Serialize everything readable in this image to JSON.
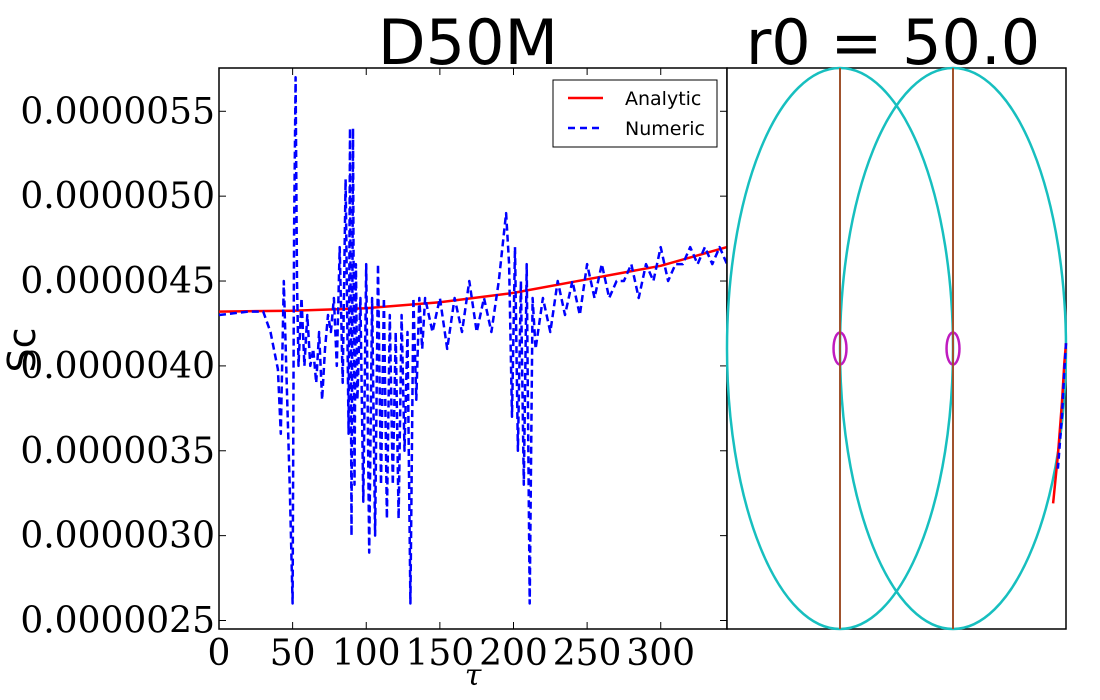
{
  "chart_data": [
    {
      "type": "line",
      "title": "D50M",
      "xlabel": "τ",
      "ylabel": "Sc",
      "xlim": [
        0,
        345
      ],
      "ylim": [
        2.45e-06,
        5.755e-06
      ],
      "xticks": [
        0,
        50,
        100,
        150,
        200,
        250,
        300
      ],
      "yticks": [
        2.5e-06,
        3e-06,
        3.5e-06,
        4e-06,
        4.5e-06,
        5e-06,
        5.5e-06
      ],
      "ytick_labels": [
        "0.0000025",
        "0.0000030",
        "0.0000035",
        "0.0000040",
        "0.0000045",
        "0.0000050",
        "0.0000055"
      ],
      "legend_position": "top-right",
      "series": [
        {
          "name": "Analytic",
          "color": "#ff0000",
          "style": "solid",
          "x": [
            0,
            50,
            100,
            150,
            200,
            250,
            300,
            345
          ],
          "y": [
            4.32e-06,
            4.325e-06,
            4.34e-06,
            4.375e-06,
            4.43e-06,
            4.51e-06,
            4.59e-06,
            4.7e-06
          ]
        },
        {
          "name": "Numeric",
          "color": "#0000ff",
          "style": "dashed",
          "x": [
            0,
            10,
            20,
            30,
            35,
            40,
            42,
            44,
            46,
            48,
            50,
            51,
            52,
            53,
            54,
            56,
            58,
            60,
            62,
            64,
            66,
            68,
            70,
            72,
            74,
            76,
            78,
            80,
            82,
            84,
            86,
            88,
            89,
            90,
            91,
            92,
            93,
            94,
            96,
            98,
            100,
            102,
            104,
            106,
            108,
            110,
            112,
            114,
            116,
            118,
            120,
            122,
            124,
            126,
            128,
            130,
            132,
            134,
            136,
            138,
            140,
            145,
            150,
            155,
            160,
            165,
            170,
            175,
            180,
            185,
            190,
            195,
            197,
            199,
            201,
            203,
            205,
            207,
            209,
            211,
            213,
            215,
            220,
            225,
            230,
            235,
            240,
            245,
            250,
            255,
            260,
            265,
            270,
            275,
            280,
            285,
            290,
            295,
            300,
            305,
            310,
            315,
            320,
            325,
            330,
            335,
            340,
            345
          ],
          "y": [
            4.3e-06,
            4.31e-06,
            4.32e-06,
            4.32e-06,
            4.2e-06,
            3.98e-06,
            3.6e-06,
            4.5e-06,
            3.9e-06,
            3.3e-06,
            2.6e-06,
            4.8e-06,
            5.7e-06,
            4.5e-06,
            4e-06,
            4.4e-06,
            4e-06,
            4.3e-06,
            4e-06,
            4.1e-06,
            3.9e-06,
            4.2e-06,
            3.8e-06,
            4.1e-06,
            4.3e-06,
            4.2e-06,
            4.4e-06,
            4e-06,
            4.7e-06,
            3.9e-06,
            5.1e-06,
            3.6e-06,
            5.4e-06,
            3e-06,
            5.4e-06,
            3.3e-06,
            4.6e-06,
            3.8e-06,
            4.4e-06,
            3.2e-06,
            4.6e-06,
            2.9e-06,
            4.4e-06,
            3e-06,
            4.6e-06,
            3.3e-06,
            4.4e-06,
            3.1e-06,
            4.3e-06,
            3.3e-06,
            4.2e-06,
            3.1e-06,
            4.3e-06,
            3.5e-06,
            4.2e-06,
            2.6e-06,
            4.4e-06,
            3.8e-06,
            4.4e-06,
            4.1e-06,
            4.4e-06,
            4.2e-06,
            4.4e-06,
            4.1e-06,
            4.4e-06,
            4.2e-06,
            4.5e-06,
            4.2e-06,
            4.4e-06,
            4.2e-06,
            4.5e-06,
            4.9e-06,
            4.6e-06,
            3.7e-06,
            4.7e-06,
            3.5e-06,
            4.5e-06,
            3.3e-06,
            4.6e-06,
            2.6e-06,
            4.4e-06,
            4.1e-06,
            4.4e-06,
            4.2e-06,
            4.5e-06,
            4.3e-06,
            4.5e-06,
            4.3e-06,
            4.6e-06,
            4.4e-06,
            4.6e-06,
            4.4e-06,
            4.5e-06,
            4.5e-06,
            4.6e-06,
            4.4e-06,
            4.6e-06,
            4.5e-06,
            4.7e-06,
            4.5e-06,
            4.6e-06,
            4.6e-06,
            4.7e-06,
            4.6e-06,
            4.7e-06,
            4.6e-06,
            4.7e-06,
            4.6e-06
          ]
        }
      ]
    },
    {
      "type": "line",
      "title": "r0 = 50.0",
      "xlim": [
        -1.05,
        1.05
      ],
      "ylim": [
        -1.05,
        1.05
      ],
      "series": [
        {
          "name": "outer-orbit-left",
          "shape": "ellipse",
          "color": "#17bfbf",
          "cx": -0.35,
          "cy": 0,
          "rx": 0.7,
          "ry": 1.05
        },
        {
          "name": "outer-orbit-right",
          "shape": "ellipse",
          "color": "#17bfbf",
          "cx": 0.35,
          "cy": 0,
          "rx": 0.7,
          "ry": 1.05
        },
        {
          "name": "inner-orbit-left",
          "shape": "ellipse",
          "color": "#bf1bbf",
          "cx": -0.35,
          "cy": 0,
          "rx": 0.04,
          "ry": 0.06
        },
        {
          "name": "inner-orbit-right",
          "shape": "ellipse",
          "color": "#bf1bbf",
          "cx": 0.35,
          "cy": 0,
          "rx": 0.04,
          "ry": 0.06
        },
        {
          "name": "axis-left",
          "shape": "vline",
          "color": "#a0522d",
          "x": -0.35
        },
        {
          "name": "axis-right",
          "shape": "vline",
          "color": "#a0522d",
          "x": 0.35
        },
        {
          "name": "Analytic",
          "shape": "path",
          "color": "#ff0000",
          "style": "solid",
          "x": [
            0.97,
            1.0,
            1.025,
            1.04,
            1.05
          ],
          "y": [
            -0.58,
            -0.4,
            -0.2,
            -0.05,
            0.02
          ]
        },
        {
          "name": "Numeric",
          "shape": "path",
          "color": "#0000ff",
          "style": "dashed",
          "x": [
            1.0,
            1.025,
            1.04,
            1.05
          ],
          "y": [
            -0.45,
            -0.25,
            -0.08,
            0.02
          ]
        }
      ]
    }
  ]
}
